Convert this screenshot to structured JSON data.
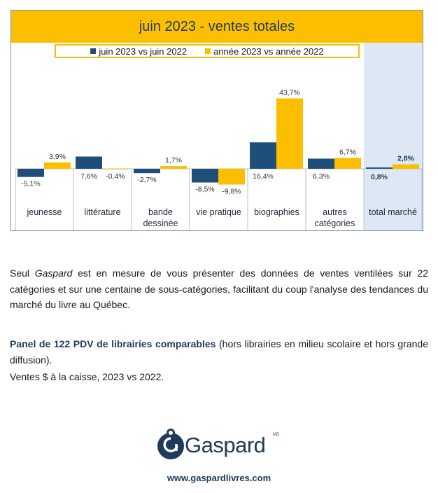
{
  "chart_data": {
    "type": "bar",
    "title": "juin 2023 - ventes totales",
    "categories": [
      "jeunesse",
      "littérature",
      "bande dessinée",
      "vie pratique",
      "biographies",
      "autres catégories",
      "total marché"
    ],
    "series": [
      {
        "name": "juin 2023 vs juin 2022",
        "color": "#1f4e79",
        "values": [
          -5.1,
          7.6,
          -2.7,
          -8.5,
          16.4,
          6.3,
          0.8
        ],
        "labels": [
          "-5,1%",
          "7,6%",
          "-2,7%",
          "-8,5%",
          "16,4%",
          "6,3%",
          "0,8%"
        ]
      },
      {
        "name": "année 2023 vs année 2022",
        "color": "#fbbf00",
        "values": [
          3.9,
          -0.4,
          1.7,
          -9.8,
          43.7,
          6.7,
          2.8
        ],
        "labels": [
          "3,9%",
          "-0,4%",
          "1,7%",
          "-9,8%",
          "43,7%",
          "6,7%",
          "2,8%"
        ]
      }
    ],
    "highlight_category": "total marché",
    "highlight_color": "#dde8f4",
    "legend_position": "top",
    "grid": false
  },
  "text": {
    "p1_a": "Seul ",
    "p1_brand": "Gaspard",
    "p1_b": " est en mesure de vous présenter des données de ventes ventilées sur 22 catégories et sur une centaine de sous-catégories, facilitant du coup l'analyse des tendances du marché du livre au Québec.",
    "p2_strong": "Panel de 122 PDV de librairies comparables",
    "p2_rest": " (hors librairies en milieu scolaire et hors grande diffusion).",
    "p3": "Ventes $ à la caisse, 2023 vs 2022."
  },
  "logo": {
    "name": "Gaspard",
    "tm": "MD"
  },
  "site_url": "www.gaspardlivres.com"
}
